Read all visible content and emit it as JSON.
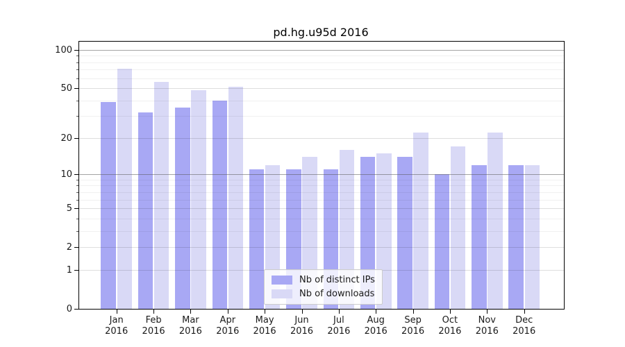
{
  "chart_data": {
    "type": "bar",
    "title": "pd.hg.u95d 2016",
    "year": "2016",
    "categories": [
      "Jan",
      "Feb",
      "Mar",
      "Apr",
      "May",
      "Jun",
      "Jul",
      "Aug",
      "Sep",
      "Oct",
      "Nov",
      "Dec"
    ],
    "series": [
      {
        "name": "Nb of distinct IPs",
        "color": "#a8a8f4",
        "values": [
          39,
          32,
          35,
          40,
          11,
          11,
          11,
          14,
          14,
          10,
          12,
          12
        ]
      },
      {
        "name": "Nb of downloads",
        "color": "#d9d9f6",
        "values": [
          71,
          56,
          48,
          51,
          12,
          14,
          16,
          15,
          22,
          17,
          22,
          12
        ]
      }
    ],
    "yscale": "log1p",
    "ylim": [
      0,
      116
    ],
    "yticks": [
      0,
      1,
      2,
      5,
      10,
      20,
      50,
      100
    ],
    "minor_yticks": [
      3,
      4,
      6,
      7,
      8,
      9,
      30,
      40,
      60,
      70,
      80,
      90
    ],
    "grid": true,
    "legend_position": "lower center"
  },
  "colors": {
    "background": "#ffffff",
    "axis": "#000000",
    "text": "#1a1a1a",
    "grid_decade": "rgba(90,90,90,0.55)",
    "grid_major": "rgba(0,0,0,0.13)",
    "grid_minor": "rgba(0,0,0,0.06)",
    "legend_bg": "rgba(255,255,255,0.8)",
    "legend_border": "#cccccc"
  }
}
